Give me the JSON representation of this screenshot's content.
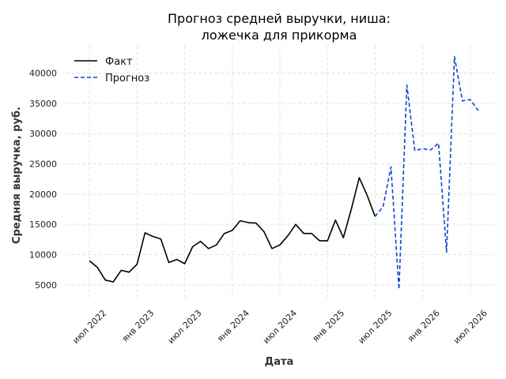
{
  "chart_data": {
    "type": "line",
    "title_lines": [
      "Прогноз средней выручки, ниша:",
      "ложечка для прикорма"
    ],
    "xlabel": "Дата",
    "ylabel": "Средняя выручка, руб.",
    "ylim": [
      2500,
      44500
    ],
    "yticks": [
      5000,
      10000,
      15000,
      20000,
      25000,
      30000,
      35000,
      40000
    ],
    "xticks": [
      {
        "date": "2022-07",
        "label": "июл 2022"
      },
      {
        "date": "2023-01",
        "label": "янв 2023"
      },
      {
        "date": "2023-07",
        "label": "июл 2023"
      },
      {
        "date": "2024-01",
        "label": "янв 2024"
      },
      {
        "date": "2024-07",
        "label": "июл 2024"
      },
      {
        "date": "2025-01",
        "label": "янв 2025"
      },
      {
        "date": "2025-07",
        "label": "июл 2025"
      },
      {
        "date": "2026-01",
        "label": "янв 2026"
      },
      {
        "date": "2026-07",
        "label": "июл 2026"
      }
    ],
    "xrange": [
      "2022-04",
      "2026-10"
    ],
    "grid": true,
    "legend_position": "top-left",
    "series": [
      {
        "name": "Факт",
        "color": "#000000",
        "style": "solid",
        "x": [
          "2022-07",
          "2022-08",
          "2022-09",
          "2022-10",
          "2022-11",
          "2022-12",
          "2023-01",
          "2023-02",
          "2023-03",
          "2023-04",
          "2023-05",
          "2023-06",
          "2023-07",
          "2023-08",
          "2023-09",
          "2023-10",
          "2023-11",
          "2023-12",
          "2024-01",
          "2024-02",
          "2024-03",
          "2024-04",
          "2024-05",
          "2024-06",
          "2024-07",
          "2024-08",
          "2024-09",
          "2024-10",
          "2024-11",
          "2024-12",
          "2025-01",
          "2025-02",
          "2025-03",
          "2025-04",
          "2025-05",
          "2025-06",
          "2025-07"
        ],
        "values": [
          9000,
          7900,
          5800,
          5500,
          7400,
          7100,
          8400,
          13600,
          13000,
          12600,
          8700,
          9200,
          8500,
          11300,
          12200,
          11000,
          11600,
          13500,
          14000,
          15600,
          15300,
          15200,
          13800,
          11000,
          11600,
          13100,
          15000,
          13500,
          13500,
          12300,
          12300,
          15700,
          12800,
          17500,
          22700,
          19800,
          16300
        ]
      },
      {
        "name": "Прогноз",
        "color": "#1144cc",
        "style": "dashed",
        "x": [
          "2025-07",
          "2025-08",
          "2025-09",
          "2025-10",
          "2025-11",
          "2025-12",
          "2026-01",
          "2026-02",
          "2026-03",
          "2026-04",
          "2026-05",
          "2026-06",
          "2026-07",
          "2026-08"
        ],
        "values": [
          16300,
          17900,
          24500,
          4300,
          38000,
          27200,
          27500,
          27300,
          28400,
          10400,
          42700,
          35400,
          35600,
          33800
        ]
      }
    ]
  }
}
